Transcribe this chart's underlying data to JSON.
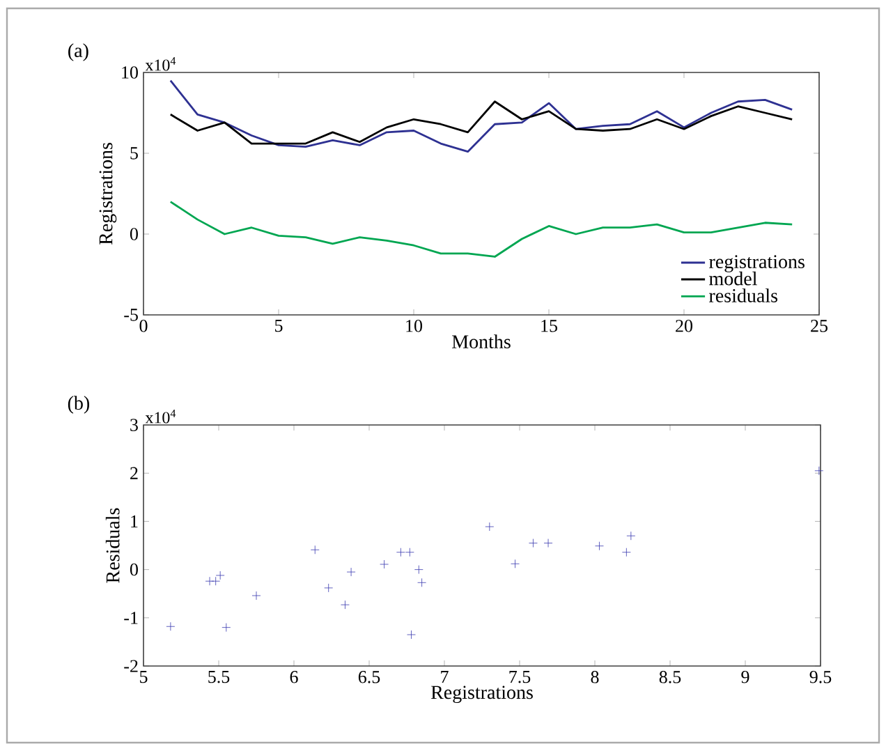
{
  "chart_data": [
    {
      "type": "line",
      "xlabel": "Months",
      "ylabel": "Registrations",
      "annotations": [
        "(a)",
        "x10$^{4}$"
      ],
      "x": [
        1,
        2,
        3,
        4,
        5,
        6,
        7,
        8,
        9,
        10,
        11,
        12,
        13,
        14,
        15,
        16,
        17,
        18,
        19,
        20,
        21,
        22,
        23,
        24
      ],
      "series": [
        {
          "name": "registrations",
          "color": "#2e3192",
          "values": [
            9.5,
            7.4,
            6.9,
            6.1,
            5.5,
            5.4,
            5.8,
            5.5,
            6.3,
            6.4,
            5.6,
            5.1,
            6.8,
            6.9,
            8.1,
            6.5,
            6.7,
            6.8,
            7.6,
            6.6,
            7.5,
            8.2,
            8.3,
            7.7
          ]
        },
        {
          "name": "model",
          "color": "#000000",
          "values": [
            7.4,
            6.4,
            6.9,
            5.6,
            5.6,
            5.6,
            6.3,
            5.7,
            6.6,
            7.1,
            6.8,
            6.3,
            8.2,
            7.1,
            7.6,
            6.5,
            6.4,
            6.5,
            7.1,
            6.5,
            7.3,
            7.9,
            7.5,
            7.1
          ]
        },
        {
          "name": "residuals",
          "color": "#00a651",
          "values": [
            2.0,
            0.9,
            0.0,
            0.4,
            -0.1,
            -0.2,
            -0.6,
            -0.2,
            -0.4,
            -0.7,
            -1.2,
            -1.2,
            -1.4,
            -0.3,
            0.5,
            0.0,
            0.4,
            0.4,
            0.6,
            0.1,
            0.1,
            0.4,
            0.7,
            0.6
          ]
        }
      ],
      "xlim": [
        0,
        25
      ],
      "ylim": [
        -5,
        10
      ],
      "xticks": [
        0,
        5,
        10,
        15,
        20,
        25
      ],
      "yticks": [
        -5,
        0,
        5,
        10
      ],
      "legend": "bottom right",
      "marker": "none",
      "line_style": "solid"
    },
    {
      "type": "scatter",
      "xlabel": "Registrations",
      "ylabel": "Residuals",
      "annotations": [
        "(b)",
        "x10$^{4}$"
      ],
      "x": [
        5.18,
        5.44,
        5.48,
        5.51,
        5.55,
        5.75,
        6.14,
        6.23,
        6.34,
        6.38,
        6.6,
        6.71,
        6.77,
        6.78,
        6.83,
        6.85,
        7.3,
        7.47,
        7.59,
        7.69,
        8.03,
        8.21,
        8.24,
        9.49
      ],
      "values": [
        -1.18,
        -0.24,
        -0.24,
        -0.12,
        -1.2,
        -0.54,
        0.41,
        -0.38,
        -0.73,
        -0.05,
        0.11,
        0.36,
        0.36,
        -1.35,
        0.0,
        -0.27,
        0.89,
        0.12,
        0.55,
        0.55,
        0.49,
        0.36,
        0.7,
        2.05
      ],
      "color": "#3a3ab0",
      "xlim": [
        5,
        9.5
      ],
      "ylim": [
        -2,
        3
      ],
      "xticks": [
        5,
        5.5,
        6,
        6.5,
        7,
        7.5,
        8,
        8.5,
        9,
        9.5
      ],
      "yticks": [
        -2,
        -1,
        0,
        1,
        2,
        3
      ],
      "marker": "cross"
    }
  ]
}
